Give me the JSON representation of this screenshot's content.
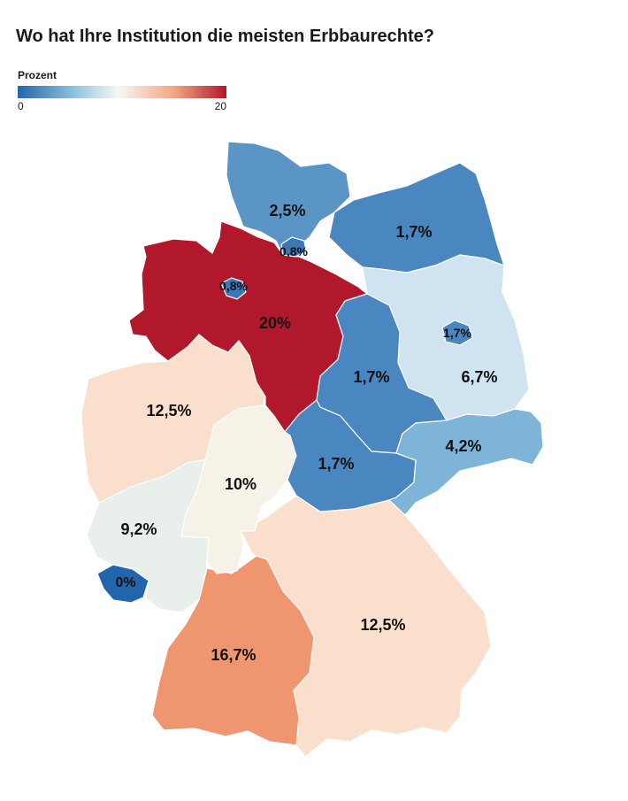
{
  "title": "Wo hat Ihre Institution die meisten Erbbaurechte?",
  "legend": {
    "title": "Prozent",
    "min_label": "0",
    "max_label": "20",
    "colors": [
      "#2166ac",
      "#92c5de",
      "#f7f7f7",
      "#f4a582",
      "#b2182b"
    ]
  },
  "regions": [
    {
      "id": "schleswig-holstein",
      "value_label": "2,5%",
      "color": "#5b95c6"
    },
    {
      "id": "hamburg",
      "value_label": "0,8%",
      "color": "#3b78b6"
    },
    {
      "id": "mecklenburg-vorpommern",
      "value_label": "1,7%",
      "color": "#4a86c0"
    },
    {
      "id": "niedersachsen",
      "value_label": "20%",
      "color": "#b2182b"
    },
    {
      "id": "bremen",
      "value_label": "0,8%",
      "color": "#3b78b6"
    },
    {
      "id": "brandenburg",
      "value_label": "6,7%",
      "color": "#cfe3f1"
    },
    {
      "id": "berlin",
      "value_label": "1,7%",
      "color": "#4a86c0"
    },
    {
      "id": "sachsen-anhalt",
      "value_label": "1,7%",
      "color": "#4a86c0"
    },
    {
      "id": "nordrhein-westfalen",
      "value_label": "12,5%",
      "color": "#fadfcd"
    },
    {
      "id": "thueringen",
      "value_label": "1,7%",
      "color": "#4a86c0"
    },
    {
      "id": "sachsen",
      "value_label": "4,2%",
      "color": "#7fb4d9"
    },
    {
      "id": "hessen",
      "value_label": "10%",
      "color": "#f6f2e7"
    },
    {
      "id": "rheinland-pfalz",
      "value_label": "9,2%",
      "color": "#e9efea"
    },
    {
      "id": "saarland",
      "value_label": "0%",
      "color": "#2166ac"
    },
    {
      "id": "bayern",
      "value_label": "12,5%",
      "color": "#fadfcd"
    },
    {
      "id": "baden-wuerttemberg",
      "value_label": "16,7%",
      "color": "#ef9670"
    }
  ]
}
